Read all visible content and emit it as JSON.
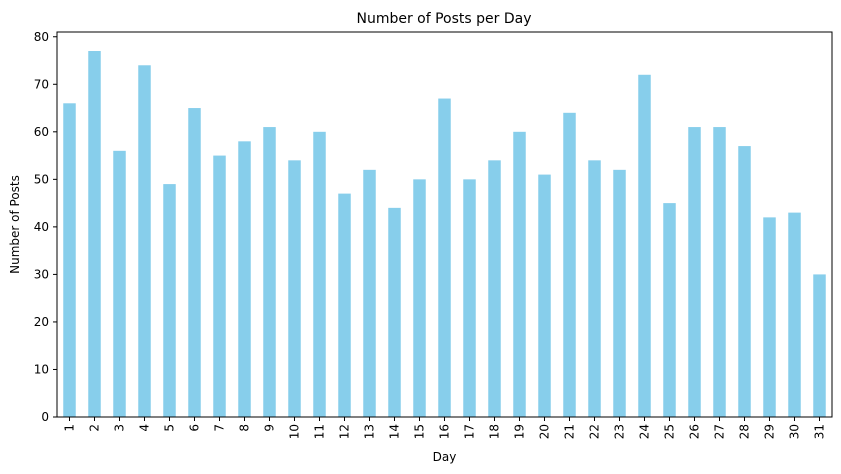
{
  "chart_data": {
    "type": "bar",
    "title": "Number of Posts per Day",
    "xlabel": "Day",
    "ylabel": "Number of Posts",
    "categories": [
      "1",
      "2",
      "3",
      "4",
      "5",
      "6",
      "7",
      "8",
      "9",
      "10",
      "11",
      "12",
      "13",
      "14",
      "15",
      "16",
      "17",
      "18",
      "19",
      "20",
      "21",
      "22",
      "23",
      "24",
      "25",
      "26",
      "27",
      "28",
      "29",
      "30",
      "31"
    ],
    "values": [
      66,
      77,
      56,
      74,
      49,
      65,
      55,
      58,
      61,
      54,
      60,
      47,
      52,
      44,
      50,
      67,
      50,
      54,
      60,
      51,
      64,
      54,
      52,
      72,
      45,
      61,
      61,
      57,
      42,
      43,
      30
    ],
    "ylim": [
      0,
      81
    ],
    "yticks": [
      0,
      10,
      20,
      30,
      40,
      50,
      60,
      70,
      80
    ],
    "grid": false,
    "legend": "none",
    "bar_color": "#87CEEB",
    "x_tick_rotation": "vertical"
  }
}
